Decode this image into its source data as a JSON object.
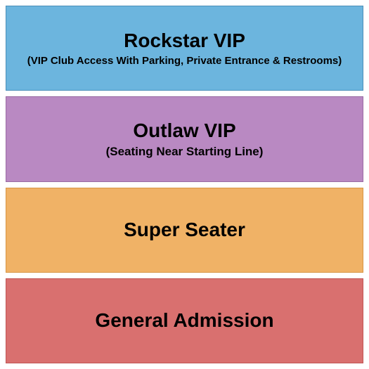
{
  "sections": [
    {
      "title": "Rockstar VIP",
      "subtitle": "(VIP Club Access With Parking, Private Entrance & Restrooms)",
      "background_color": "#6cb5de",
      "border_color": "#4a8fb8",
      "title_fontsize": 28,
      "subtitle_fontsize": 15
    },
    {
      "title": "Outlaw VIP",
      "subtitle": "(Seating Near Starting Line)",
      "background_color": "#b989c2",
      "border_color": "#9a6ba3",
      "title_fontsize": 28,
      "subtitle_fontsize": 17
    },
    {
      "title": "Super Seater",
      "subtitle": "",
      "background_color": "#f0b266",
      "border_color": "#d89544",
      "title_fontsize": 28,
      "subtitle_fontsize": 0
    },
    {
      "title": "General Admission",
      "subtitle": "",
      "background_color": "#d9706f",
      "border_color": "#c05554",
      "title_fontsize": 28,
      "subtitle_fontsize": 0
    }
  ]
}
